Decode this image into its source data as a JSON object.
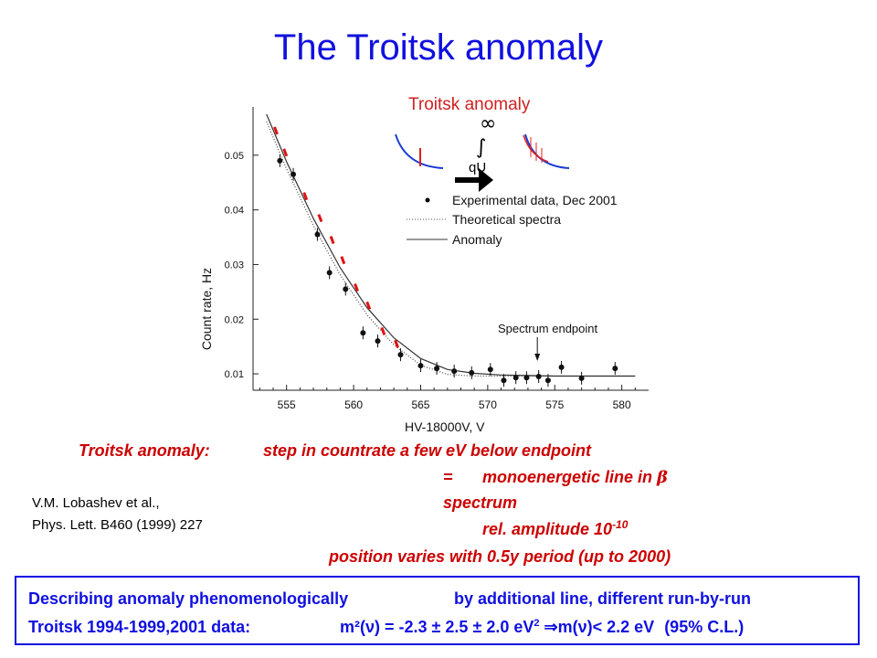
{
  "slide": {
    "title": "The Troitsk anomaly"
  },
  "chart_data": {
    "type": "scatter",
    "xlabel": "HV-18000V, V",
    "ylabel": "Count rate, Hz",
    "xlim": [
      552.5,
      582
    ],
    "ylim": [
      0.007,
      0.058
    ],
    "xticks": [
      555,
      560,
      565,
      570,
      575,
      580
    ],
    "yticks": [
      0.01,
      0.02,
      0.03,
      0.04,
      0.05
    ],
    "x_tick_labels": [
      "555",
      "560",
      "565",
      "570",
      "575",
      "580"
    ],
    "y_tick_labels": [
      "0.01",
      "0.02",
      "0.03",
      "0.04",
      "0.05"
    ],
    "legend_placement": "top-right",
    "series": [
      {
        "name": "Experimental data, Dec 2001",
        "style": "points",
        "x": [
          554.5,
          555.5,
          557.3,
          558.2,
          559.4,
          560.7,
          561.8,
          563.5,
          565,
          566.2,
          567.5,
          568.8,
          570.2,
          571.2,
          572.1,
          572.9,
          573.8,
          574.5,
          575.5,
          577,
          579.5
        ],
        "y": [
          0.049,
          0.0465,
          0.0355,
          0.0285,
          0.0255,
          0.0175,
          0.016,
          0.0135,
          0.0115,
          0.011,
          0.0105,
          0.0102,
          0.0108,
          0.0088,
          0.0093,
          0.0093,
          0.0095,
          0.0088,
          0.0112,
          0.0092,
          0.011
        ]
      },
      {
        "name": "Theoretical spectra",
        "style": "dotted",
        "x": [
          553.5,
          555,
          557,
          559,
          561,
          563,
          565,
          567,
          569,
          571,
          573,
          575,
          577,
          579,
          581
        ],
        "y": [
          0.0562,
          0.0475,
          0.0371,
          0.0281,
          0.0208,
          0.0153,
          0.0116,
          0.0099,
          0.0096,
          0.0096,
          0.0096,
          0.0096,
          0.0096,
          0.0096,
          0.0096
        ]
      },
      {
        "name": "Anomaly",
        "style": "solid",
        "x": [
          553.5,
          555,
          557,
          559,
          561,
          563,
          565,
          567,
          569,
          571,
          573,
          575,
          577,
          579,
          581
        ],
        "y": [
          0.0575,
          0.0488,
          0.0384,
          0.0294,
          0.0221,
          0.0166,
          0.0128,
          0.0108,
          0.0101,
          0.0098,
          0.0097,
          0.0096,
          0.0096,
          0.0096,
          0.0096
        ]
      },
      {
        "name": "",
        "style": "red-marks",
        "color": "#e01010",
        "x": [
          554.2,
          554.9,
          556.4,
          557.5,
          558.4,
          559.2,
          560.2,
          561.1,
          562.2,
          563.2
        ],
        "y": [
          0.0545,
          0.0505,
          0.0425,
          0.0385,
          0.0345,
          0.0308,
          0.0258,
          0.0225,
          0.0178,
          0.0155
        ]
      }
    ],
    "annotations": {
      "endpoint_label": "Spectrum endpoint",
      "endpoint_x": 573.7,
      "inset_title": "Troitsk  anomaly",
      "inset_integral_label": "qU",
      "inset_infinity": "∞",
      "inset_integral": "∫"
    }
  },
  "text": {
    "anomaly_label": "Troitsk anomaly:",
    "anomaly_line1": "step in countrate a few eV below endpoint",
    "anomaly_eq": "=",
    "anomaly_line2a": "monoenergetic line in ",
    "beta_symbol": "β",
    "anomaly_line2b": "spectrum",
    "anomaly_line3": "rel. amplitude 10",
    "anomaly_exp": "-10",
    "anomaly_line4": "position varies with 0.5y period (up to 2000)",
    "ref_line1": "V.M. Lobashev et al.,",
    "ref_line2": "Phys. Lett. B460 (1999) 227"
  },
  "summary": {
    "line1a": "Describing anomaly phenomenologically",
    "line1b": "by additional line, different run-by-run",
    "line2_label": "Troitsk 1994-1999,2001 data:",
    "line2_eq_a": "m²(",
    "nu_symbol": "ν",
    "line2_eq_b": ") = -2.3 ± 2.5 ± 2.0 eV",
    "sq": "2",
    "implies": "⇒",
    "line2_m": "m(",
    "line2_eq_c": ")< 2.2 eV",
    "line2_cl": "(95% C.L.)"
  },
  "colors": {
    "accent_blue": "#1010e0",
    "red_text": "#cc0000",
    "red_marks": "#e01010"
  }
}
